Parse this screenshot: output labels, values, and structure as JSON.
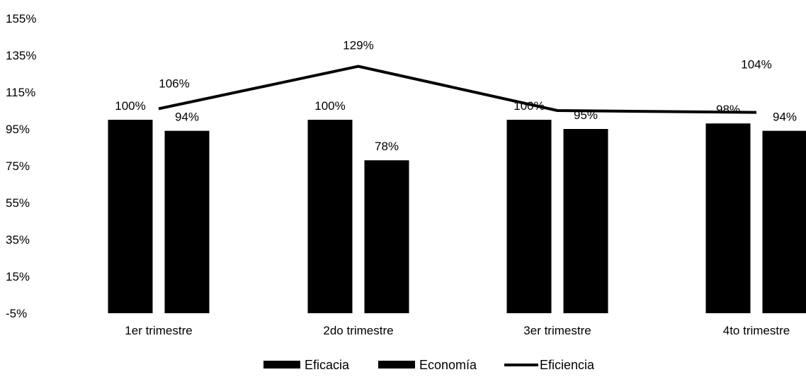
{
  "chart_data": {
    "type": "bar",
    "categories": [
      "1er trimestre",
      "2do trimestre",
      "3er trimestre",
      "4to trimestre"
    ],
    "series": [
      {
        "name": "Eficacia",
        "kind": "bar",
        "values": [
          100,
          100,
          100,
          98
        ],
        "labels": [
          "100%",
          "100%",
          "100%",
          "98%"
        ]
      },
      {
        "name": "Economía",
        "kind": "bar",
        "values": [
          94,
          78,
          95,
          94
        ],
        "labels": [
          "94%",
          "78%",
          "95%",
          "94%"
        ]
      },
      {
        "name": "Eficiencia",
        "kind": "line",
        "values": [
          106,
          129,
          105,
          104
        ],
        "labels": [
          "106%",
          "129%",
          "",
          "104%"
        ]
      }
    ],
    "y_ticks": [
      "155%",
      "135%",
      "115%",
      "95%",
      "75%",
      "55%",
      "35%",
      "15%",
      "-5%"
    ],
    "y_tick_values": [
      155,
      135,
      115,
      95,
      75,
      55,
      35,
      15,
      -5
    ],
    "ylim": [
      -5,
      155
    ],
    "title": "",
    "xlabel": "",
    "ylabel": "",
    "grid": false,
    "legend_position": "bottom-center",
    "colors": {
      "Eficacia": "#000000",
      "Economía": "#000000",
      "Eficiencia": "#000000"
    }
  }
}
